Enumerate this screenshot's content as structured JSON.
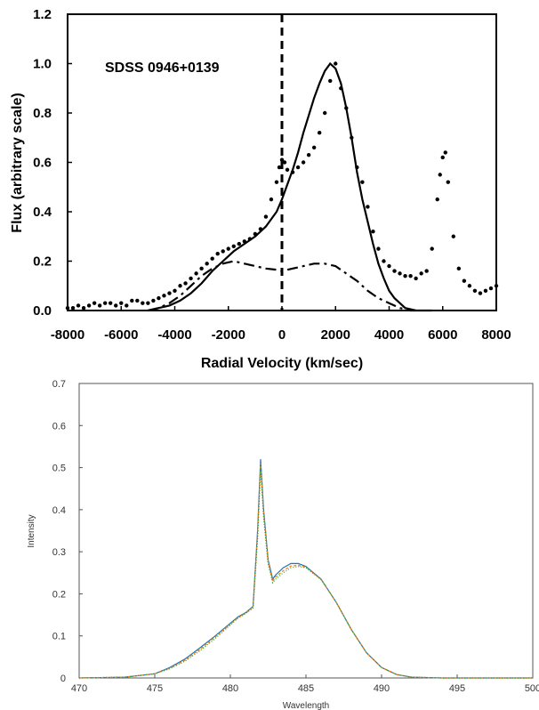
{
  "chart_data": [
    {
      "type": "line",
      "title": "",
      "annotation": "SDSS 0946+0139",
      "xlabel": "Radial Velocity (km/sec)",
      "ylabel": "Flux (arbitrary scale)",
      "xlim": [
        -8000,
        8000
      ],
      "ylim": [
        0,
        1.2
      ],
      "xticks": [
        -8000,
        -6000,
        -4000,
        -2000,
        0,
        2000,
        4000,
        6000,
        8000
      ],
      "yticks": [
        "0.0",
        "0.2",
        "0.4",
        "0.6",
        "0.8",
        "1.0",
        "1.2"
      ],
      "grid": false,
      "reference_line": {
        "x": 0,
        "style": "dashed"
      },
      "series": [
        {
          "style": "dots",
          "x": [
            -8000,
            -7800,
            -7600,
            -7400,
            -7200,
            -7000,
            -6800,
            -6600,
            -6400,
            -6200,
            -6000,
            -5800,
            -5600,
            -5400,
            -5200,
            -5000,
            -4800,
            -4600,
            -4400,
            -4200,
            -4000,
            -3800,
            -3600,
            -3400,
            -3200,
            -3000,
            -2800,
            -2600,
            -2400,
            -2200,
            -2000,
            -1800,
            -1600,
            -1400,
            -1200,
            -1000,
            -800,
            -600,
            -400,
            -200,
            -100,
            0,
            100,
            200,
            400,
            600,
            800,
            1000,
            1200,
            1400,
            1600,
            1800,
            2000,
            2200,
            2400,
            2600,
            2800,
            3000,
            3200,
            3400,
            3600,
            3800,
            4000,
            4200,
            4400,
            4600,
            4800,
            5000,
            5200,
            5400,
            5600,
            5800,
            5900,
            6000,
            6100,
            6200,
            6400,
            6600,
            6800,
            7000,
            7200,
            7400,
            7600,
            7800,
            8000
          ],
          "y": [
            0.01,
            0.01,
            0.02,
            0.01,
            0.02,
            0.03,
            0.02,
            0.03,
            0.03,
            0.02,
            0.03,
            0.02,
            0.04,
            0.04,
            0.03,
            0.03,
            0.04,
            0.05,
            0.06,
            0.07,
            0.08,
            0.1,
            0.11,
            0.13,
            0.15,
            0.17,
            0.19,
            0.21,
            0.23,
            0.24,
            0.25,
            0.26,
            0.27,
            0.28,
            0.29,
            0.31,
            0.33,
            0.38,
            0.45,
            0.52,
            0.58,
            0.61,
            0.6,
            0.57,
            0.56,
            0.58,
            0.6,
            0.63,
            0.66,
            0.72,
            0.8,
            0.93,
            1.0,
            0.9,
            0.82,
            0.7,
            0.58,
            0.52,
            0.42,
            0.32,
            0.25,
            0.2,
            0.18,
            0.16,
            0.15,
            0.14,
            0.14,
            0.13,
            0.15,
            0.16,
            0.25,
            0.45,
            0.55,
            0.62,
            0.64,
            0.52,
            0.3,
            0.17,
            0.12,
            0.1,
            0.08,
            0.07,
            0.08,
            0.09,
            0.1
          ]
        },
        {
          "style": "solid",
          "x": [
            -5000,
            -4600,
            -4200,
            -3800,
            -3400,
            -3000,
            -2600,
            -2200,
            -1800,
            -1400,
            -1000,
            -600,
            -200,
            0,
            200,
            400,
            600,
            800,
            1000,
            1200,
            1400,
            1600,
            1800,
            2000,
            2200,
            2400,
            2600,
            2800,
            3000,
            3200,
            3400,
            3600,
            3800,
            4000,
            4200,
            4400,
            4600,
            5000,
            5600
          ],
          "y": [
            0.0,
            0.01,
            0.02,
            0.04,
            0.07,
            0.11,
            0.16,
            0.2,
            0.24,
            0.27,
            0.3,
            0.34,
            0.4,
            0.45,
            0.51,
            0.57,
            0.64,
            0.72,
            0.79,
            0.86,
            0.92,
            0.97,
            1.0,
            0.98,
            0.92,
            0.82,
            0.7,
            0.56,
            0.45,
            0.36,
            0.27,
            0.19,
            0.13,
            0.08,
            0.05,
            0.03,
            0.01,
            0.0,
            0.0
          ]
        },
        {
          "style": "dash-dot",
          "x": [
            -5000,
            -4600,
            -4200,
            -3800,
            -3400,
            -3000,
            -2600,
            -2200,
            -1800,
            -1400,
            -1000,
            -600,
            -200,
            0,
            400,
            800,
            1200,
            1600,
            2000,
            2400,
            2800,
            3200,
            3600,
            4000,
            4400,
            4800,
            5000
          ],
          "y": [
            0.0,
            0.01,
            0.03,
            0.06,
            0.1,
            0.14,
            0.17,
            0.19,
            0.2,
            0.19,
            0.18,
            0.17,
            0.165,
            0.16,
            0.17,
            0.18,
            0.19,
            0.19,
            0.18,
            0.15,
            0.12,
            0.08,
            0.05,
            0.03,
            0.01,
            0.0,
            0.0
          ]
        }
      ]
    },
    {
      "type": "line",
      "title": "",
      "xlabel": "Wavelength",
      "ylabel": "Intensity",
      "xlim": [
        470,
        500
      ],
      "ylim": [
        0,
        0.7
      ],
      "xticks": [
        470,
        475,
        480,
        485,
        490,
        495,
        500
      ],
      "yticks": [
        "0",
        "0.1",
        "0.2",
        "0.3",
        "0.4",
        "0.5",
        "0.6",
        "0.7"
      ],
      "grid": false,
      "colors": [
        "#1f77b4",
        "#ff7f0e",
        "#2ca02c",
        "#d62728",
        "#17becf",
        "#bcbd22"
      ],
      "series": [
        {
          "x": [
            470,
            473,
            475,
            476,
            477,
            478,
            479,
            480,
            480.5,
            481,
            481.5,
            481.8,
            482,
            482.2,
            482.5,
            482.8,
            483,
            483.5,
            484,
            484.5,
            485,
            486,
            487,
            488,
            489,
            490,
            491,
            492,
            494,
            496,
            500
          ],
          "y": [
            0,
            0.002,
            0.01,
            0.025,
            0.045,
            0.072,
            0.1,
            0.13,
            0.145,
            0.155,
            0.17,
            0.35,
            0.52,
            0.4,
            0.28,
            0.235,
            0.245,
            0.262,
            0.272,
            0.272,
            0.265,
            0.235,
            0.18,
            0.115,
            0.06,
            0.025,
            0.008,
            0.002,
            0,
            0,
            0
          ]
        },
        {
          "x": [
            470,
            473,
            475,
            476,
            477,
            478,
            479,
            480,
            480.5,
            481,
            481.5,
            481.8,
            482,
            482.2,
            482.5,
            482.8,
            483,
            483.5,
            484,
            484.5,
            485,
            486,
            487,
            488,
            489,
            490,
            491,
            492,
            494,
            496,
            500
          ],
          "y": [
            0,
            0.002,
            0.01,
            0.023,
            0.042,
            0.068,
            0.097,
            0.128,
            0.143,
            0.154,
            0.168,
            0.34,
            0.51,
            0.39,
            0.275,
            0.23,
            0.24,
            0.255,
            0.266,
            0.268,
            0.263,
            0.234,
            0.18,
            0.115,
            0.06,
            0.025,
            0.008,
            0.002,
            0,
            0,
            0
          ]
        },
        {
          "x": [
            470,
            473,
            475,
            476,
            477,
            478,
            479,
            480,
            480.5,
            481,
            481.5,
            481.8,
            482,
            482.2,
            482.5,
            482.8,
            483,
            483.5,
            484,
            484.5,
            485,
            486,
            487,
            488,
            489,
            490,
            491,
            492,
            494,
            496,
            500
          ],
          "y": [
            0,
            0.002,
            0.01,
            0.022,
            0.04,
            0.065,
            0.094,
            0.126,
            0.142,
            0.153,
            0.166,
            0.33,
            0.5,
            0.38,
            0.27,
            0.226,
            0.235,
            0.25,
            0.262,
            0.265,
            0.262,
            0.234,
            0.18,
            0.115,
            0.06,
            0.025,
            0.008,
            0.002,
            0,
            0,
            0
          ]
        }
      ]
    }
  ]
}
